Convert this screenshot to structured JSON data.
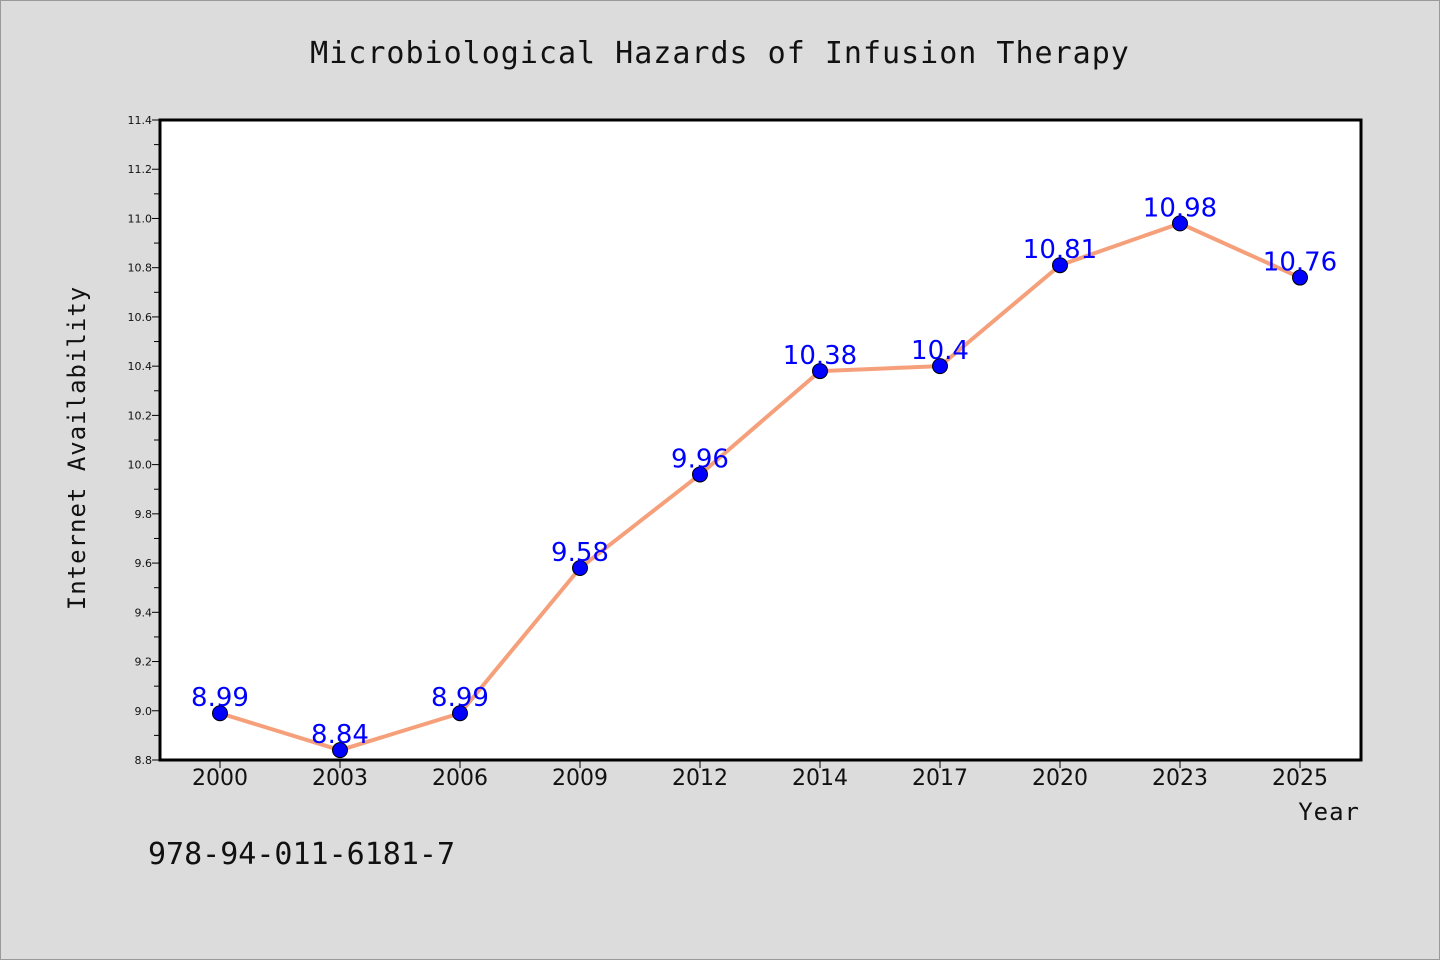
{
  "chart_data": {
    "type": "line",
    "title": "Microbiological Hazards of Infusion Therapy",
    "xlabel": "Year",
    "ylabel": "Internet Availability",
    "categories": [
      "2000",
      "2003",
      "2006",
      "2009",
      "2012",
      "2014",
      "2017",
      "2020",
      "2023",
      "2025"
    ],
    "series": [
      {
        "values": [
          8.99,
          8.84,
          8.99,
          9.58,
          9.96,
          10.38,
          10.4,
          10.81,
          10.98,
          10.76
        ],
        "data_labels": [
          "8.99",
          "8.84",
          "8.99",
          "9.58",
          "9.96",
          "10.38",
          "10.4",
          "10.81",
          "10.98",
          "10.76"
        ],
        "line_color": "#f5a07a",
        "marker_color": "#0000ff",
        "label_color": "#0000ff"
      }
    ],
    "ylim": [
      8.8,
      11.4
    ],
    "yticks": [
      "8.8",
      "9.0",
      "9.2",
      "9.4",
      "9.6",
      "9.8",
      "10.0",
      "10.2",
      "10.4",
      "10.6",
      "10.8",
      "11.0",
      "11.2",
      "11.4"
    ],
    "grid": false,
    "legend": "none"
  },
  "footer": {
    "isbn": "978-94-011-6181-7"
  },
  "colors": {
    "background": "#dcdcdc",
    "plot_background": "#ffffff",
    "axes": "#000000"
  }
}
